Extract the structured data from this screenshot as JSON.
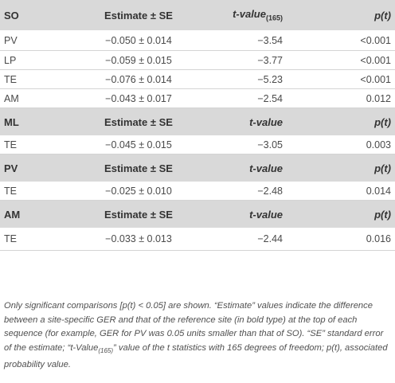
{
  "col_headers": {
    "estimate": "Estimate ± SE",
    "t_first": "t-value",
    "t_first_sub": "(165)",
    "t": "t-value",
    "p": "p(t)"
  },
  "sections": [
    {
      "reference": "SO",
      "rows": [
        {
          "site": "PV",
          "estimate": "−0.050 ± 0.014",
          "t": "−3.54",
          "p": "<0.001"
        },
        {
          "site": "LP",
          "estimate": "−0.059 ± 0.015",
          "t": "−3.77",
          "p": "<0.001"
        },
        {
          "site": "TE",
          "estimate": "−0.076 ± 0.014",
          "t": "−5.23",
          "p": "<0.001"
        },
        {
          "site": "AM",
          "estimate": "−0.043 ± 0.017",
          "t": "−2.54",
          "p": "0.012"
        }
      ]
    },
    {
      "reference": "ML",
      "rows": [
        {
          "site": "TE",
          "estimate": "−0.045 ± 0.015",
          "t": "−3.05",
          "p": "0.003"
        }
      ]
    },
    {
      "reference": "PV",
      "rows": [
        {
          "site": "TE",
          "estimate": "−0.025 ± 0.010",
          "t": "−2.48",
          "p": "0.014"
        }
      ]
    },
    {
      "reference": "AM",
      "rows": [
        {
          "site": "TE",
          "estimate": "−0.033 ± 0.013",
          "t": "−2.44",
          "p": "0.016"
        }
      ]
    }
  ],
  "footnote": {
    "part1": "Only significant comparisons [p(t) < 0.05] are shown. “Estimate” values indicate the difference between a site-specific GER and that of the reference site (in bold type) at the top of each sequence (for example, GER for PV was 0.05 units smaller than that of SO). “SE” standard error of the estimate; “t-Value",
    "sub": "(165)",
    "part2": "” value of the t statistics with 165 degrees of freedom; p(t), associated probability value."
  }
}
